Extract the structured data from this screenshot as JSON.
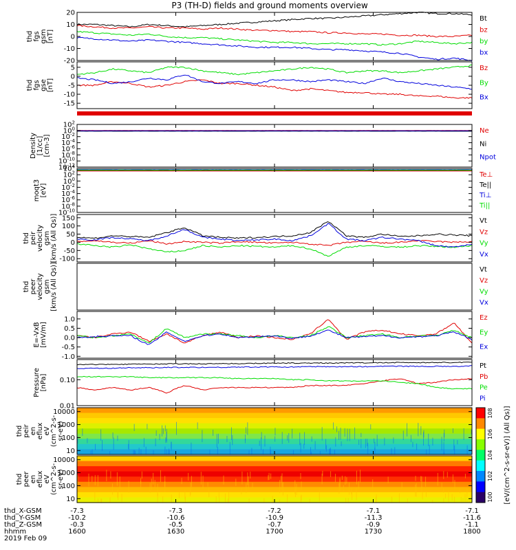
{
  "title": "P3 (TH-D) fields and ground moments overview",
  "colors": {
    "black": "#000000",
    "red": "#e00000",
    "green": "#00dd00",
    "blue": "#0000dd"
  },
  "colorbar": {
    "label": "[eV/(cm^2-s-sr-eV)] (All Qs)]",
    "ticks": [
      "10^0",
      "10^2",
      "10^4",
      "10^6",
      "10^8"
    ]
  },
  "chart_data": [
    {
      "type": "line",
      "id": "fgs_gsm",
      "ylabel": [
        "thd",
        "fgs",
        "gsm",
        "[nT]"
      ],
      "ylim": [
        -20,
        20
      ],
      "yticks": [
        "20",
        "10",
        "0",
        "-10",
        "-20"
      ],
      "series": [
        {
          "name": "Bt",
          "color": "black",
          "values": [
            10,
            10,
            9,
            8,
            10,
            9,
            8,
            9,
            10,
            11,
            12,
            13,
            14,
            15,
            15,
            16,
            17,
            18,
            19,
            20,
            19,
            19,
            18
          ]
        },
        {
          "name": "bz",
          "color": "red",
          "values": [
            9,
            8,
            7,
            7,
            8,
            7,
            7,
            6,
            7,
            6,
            5,
            5,
            4,
            4,
            3,
            3,
            2,
            2,
            1,
            1,
            0,
            0,
            1
          ]
        },
        {
          "name": "by",
          "color": "green",
          "values": [
            4,
            3,
            2,
            1,
            2,
            0,
            -1,
            -1,
            -2,
            -3,
            -4,
            -5,
            -5,
            -6,
            -6,
            -6,
            -6,
            -7,
            -6,
            -4,
            -5,
            -6,
            -5
          ]
        },
        {
          "name": "bx",
          "color": "blue",
          "values": [
            -1,
            -2,
            -3,
            -4,
            -3,
            -4,
            -5,
            -6,
            -7,
            -8,
            -9,
            -9,
            -9,
            -10,
            -11,
            -11,
            -12,
            -13,
            -14,
            -17,
            -19,
            -18,
            -20
          ]
        }
      ]
    },
    {
      "type": "line",
      "id": "fgs_gse",
      "ylabel": [
        "thd",
        "fgs",
        "gse",
        "[nT]"
      ],
      "ylim": [
        -18,
        8
      ],
      "yticks": [
        "5",
        "0",
        "-5",
        "-10",
        "-15"
      ],
      "series": [
        {
          "name": "Bz",
          "color": "red",
          "values": [
            -5,
            -5,
            -3,
            -4,
            -6,
            -5,
            -3,
            -2,
            -4,
            -4,
            -5,
            -6,
            -8,
            -7,
            -8,
            -9,
            -9,
            -10,
            -10,
            -11,
            -11,
            -12,
            -12
          ]
        },
        {
          "name": "By",
          "color": "green",
          "values": [
            1,
            2,
            4,
            3,
            2,
            5,
            5,
            3,
            2,
            1,
            2,
            3,
            4,
            5,
            4,
            2,
            3,
            3,
            2,
            3,
            4,
            5,
            6
          ]
        },
        {
          "name": "Bx",
          "color": "blue",
          "values": [
            -1,
            -2,
            -4,
            -3,
            -1,
            -2,
            1,
            -3,
            -4,
            -3,
            -4,
            -2,
            -2,
            -3,
            -2,
            -3,
            -4,
            -1,
            -3,
            -4,
            -5,
            -6,
            -7
          ]
        }
      ]
    },
    {
      "type": "line",
      "id": "density",
      "ylabel": [
        "Density",
        "[1/cc]",
        "[cm-3]"
      ],
      "log": true,
      "ylim": [
        1e-12,
        100.0
      ],
      "yticks": [
        "10^2",
        "10^0",
        "10^-2",
        "10^-4",
        "10^-6",
        "10^-8",
        "10^-10",
        "10^-12"
      ],
      "series": [
        {
          "name": "Ne",
          "color": "red",
          "values": [
            1,
            1,
            1,
            1,
            1,
            1,
            1,
            1,
            1,
            1,
            1,
            1,
            1,
            1,
            1,
            1,
            1,
            1,
            1,
            1,
            1,
            1,
            1
          ]
        },
        {
          "name": "Ni",
          "color": "black",
          "values": [
            0.6,
            0.6,
            0.6,
            0.6,
            0.6,
            0.6,
            0.6,
            0.6,
            0.6,
            0.6,
            0.6,
            0.6,
            0.6,
            0.6,
            0.6,
            0.6,
            0.6,
            0.6,
            0.6,
            0.6,
            0.6,
            0.6,
            0.6
          ]
        },
        {
          "name": "Npot",
          "color": "blue",
          "values": [
            0.8,
            0.8,
            0.8,
            0.8,
            0.8,
            0.8,
            0.8,
            0.8,
            0.8,
            0.8,
            0.8,
            0.8,
            0.8,
            0.8,
            0.8,
            0.8,
            0.8,
            0.8,
            0.8,
            0.8,
            0.8,
            0.8,
            0.8
          ]
        }
      ]
    },
    {
      "type": "line",
      "id": "temperature",
      "ylabel": [
        "moqt3",
        "[eV]"
      ],
      "log": true,
      "ylim": [
        1e-10,
        10000.0
      ],
      "yticks": [
        "10^4",
        "10^2",
        "10^0",
        "10^-2",
        "10^-4",
        "10^-6",
        "10^-8",
        "10^-10"
      ],
      "series": [
        {
          "name": "Te⊥",
          "color": "red",
          "values": [
            1500,
            1500,
            1500,
            1500,
            1500,
            1500,
            1500,
            1500,
            1500,
            1500,
            1500,
            1500,
            1500,
            1500,
            1500,
            1500,
            1500,
            1500,
            1500,
            1500,
            1500,
            1500,
            1500
          ]
        },
        {
          "name": "Te||",
          "color": "black",
          "values": [
            2500,
            2500,
            2500,
            2500,
            2500,
            2500,
            2500,
            2500,
            2500,
            2500,
            2500,
            2500,
            2500,
            2500,
            2500,
            2500,
            2500,
            2500,
            2500,
            2500,
            2500,
            2500,
            2500
          ]
        },
        {
          "name": "Ti⊥",
          "color": "blue",
          "values": [
            4000,
            4000,
            4000,
            4000,
            4000,
            4000,
            4000,
            4000,
            4000,
            4000,
            4000,
            4000,
            4000,
            4000,
            4000,
            4000,
            4000,
            4000,
            4000,
            4000,
            4000,
            4000,
            4000
          ]
        },
        {
          "name": "Ti||",
          "color": "green",
          "values": [
            3000,
            3000,
            3000,
            3000,
            3000,
            3000,
            3000,
            3000,
            3000,
            3000,
            3000,
            3000,
            3000,
            3000,
            3000,
            3000,
            3000,
            3000,
            3000,
            3000,
            3000,
            3000,
            3000
          ]
        }
      ]
    },
    {
      "type": "line",
      "id": "peir_velocity",
      "ylabel": [
        "thd",
        "peir",
        "velocity",
        "gsm",
        "[km/s (All Qs)]"
      ],
      "ylim": [
        -120,
        170
      ],
      "yticks": [
        "150",
        "100",
        "50",
        "0",
        "-50",
        "-100"
      ],
      "series": [
        {
          "name": "Vt",
          "color": "black",
          "values": [
            30,
            25,
            40,
            35,
            30,
            60,
            90,
            40,
            30,
            25,
            30,
            35,
            40,
            60,
            130,
            40,
            30,
            50,
            35,
            40,
            50,
            45,
            40
          ]
        },
        {
          "name": "Vz",
          "color": "red",
          "values": [
            5,
            10,
            0,
            -5,
            10,
            -10,
            5,
            0,
            -5,
            5,
            0,
            -5,
            0,
            -10,
            -20,
            0,
            5,
            -5,
            0,
            10,
            5,
            0,
            5
          ]
        },
        {
          "name": "Vy",
          "color": "green",
          "values": [
            -10,
            -20,
            -30,
            -15,
            -40,
            -60,
            -50,
            -20,
            -30,
            -20,
            -25,
            -30,
            -20,
            -40,
            -85,
            -30,
            -20,
            -25,
            -30,
            -20,
            -25,
            -30,
            -20
          ]
        },
        {
          "name": "Vx",
          "color": "blue",
          "values": [
            20,
            15,
            30,
            20,
            10,
            40,
            80,
            30,
            20,
            10,
            15,
            20,
            10,
            40,
            115,
            20,
            10,
            30,
            20,
            10,
            -20,
            -30,
            -10
          ]
        }
      ]
    },
    {
      "type": "line",
      "id": "peer_velocity",
      "ylabel": [
        "thd",
        "peer",
        "velocity",
        "gsm",
        "[km/s (All Qs)]"
      ],
      "ylim": [
        -100,
        100
      ],
      "yticks": [],
      "series": [
        {
          "name": "Vt",
          "color": "black",
          "values": []
        },
        {
          "name": "Vz",
          "color": "red",
          "values": []
        },
        {
          "name": "Vy",
          "color": "green",
          "values": []
        },
        {
          "name": "Vx",
          "color": "blue",
          "values": []
        }
      ]
    },
    {
      "type": "line",
      "id": "efield",
      "ylabel": [
        "E=-VxB",
        "[mV/m]"
      ],
      "ylim": [
        -1.1,
        1.4
      ],
      "yticks": [
        "1.0",
        "0.5",
        "0.0",
        "-0.5",
        "-1.0"
      ],
      "series": [
        {
          "name": "Ez",
          "color": "red",
          "values": [
            0.1,
            0.0,
            0.2,
            0.3,
            -0.2,
            0.2,
            -0.3,
            0.1,
            0.3,
            0.0,
            0.1,
            0.0,
            -0.1,
            0.2,
            1.0,
            -0.1,
            0.3,
            0.4,
            0.2,
            0.1,
            0.2,
            0.8,
            -0.3
          ]
        },
        {
          "name": "Ey",
          "color": "green",
          "values": [
            0.1,
            0.0,
            0.1,
            0.2,
            -0.3,
            0.5,
            0.0,
            0.2,
            0.2,
            0.1,
            0.0,
            0.1,
            0.0,
            0.1,
            0.6,
            0.0,
            0.1,
            0.2,
            0.0,
            0.1,
            0.1,
            0.4,
            0.0
          ]
        },
        {
          "name": "Ex",
          "color": "blue",
          "values": [
            0.0,
            0.05,
            0.1,
            0.1,
            -0.4,
            0.3,
            -0.2,
            0.1,
            0.2,
            0.0,
            0.05,
            0.1,
            -0.05,
            0.1,
            0.4,
            0.0,
            0.05,
            0.1,
            0.0,
            0.05,
            0.1,
            0.3,
            -0.1
          ]
        }
      ]
    },
    {
      "type": "line",
      "id": "pressure",
      "ylabel": [
        "Pressure",
        "[nPa]"
      ],
      "log": true,
      "ylim": [
        0.01,
        0.6
      ],
      "yticks": [
        "0.10",
        "0.01"
      ],
      "series": [
        {
          "name": "Pt",
          "color": "black",
          "values": [
            0.38,
            0.39,
            0.39,
            0.4,
            0.4,
            0.41,
            0.41,
            0.41,
            0.42,
            0.42,
            0.43,
            0.43,
            0.44,
            0.44,
            0.44,
            0.45,
            0.45,
            0.45,
            0.46,
            0.46,
            0.46,
            0.46,
            0.47
          ]
        },
        {
          "name": "Pb",
          "color": "red",
          "values": [
            0.05,
            0.04,
            0.05,
            0.04,
            0.05,
            0.03,
            0.06,
            0.04,
            0.05,
            0.05,
            0.05,
            0.05,
            0.05,
            0.06,
            0.06,
            0.06,
            0.07,
            0.09,
            0.11,
            0.07,
            0.08,
            0.1,
            0.11
          ]
        },
        {
          "name": "Pe",
          "color": "green",
          "values": [
            0.13,
            0.13,
            0.13,
            0.13,
            0.12,
            0.12,
            0.12,
            0.12,
            0.12,
            0.11,
            0.11,
            0.11,
            0.1,
            0.1,
            0.09,
            0.09,
            0.09,
            0.09,
            0.08,
            0.07,
            0.05,
            0.045,
            0.045
          ]
        },
        {
          "name": "Pi",
          "color": "blue",
          "values": [
            0.27,
            0.28,
            0.28,
            0.29,
            0.29,
            0.3,
            0.3,
            0.3,
            0.3,
            0.31,
            0.31,
            0.31,
            0.31,
            0.32,
            0.32,
            0.32,
            0.32,
            0.33,
            0.33,
            0.33,
            0.33,
            0.33,
            0.34
          ]
        }
      ]
    },
    {
      "type": "heatmap",
      "id": "peir_en_eflux",
      "ylabel": [
        "thd",
        "peir",
        "en",
        "eflux",
        "eV",
        "(cm^2-s-",
        "sr-eV)"
      ],
      "log": true,
      "ylim": [
        5,
        20000
      ],
      "yticks": [
        "10000",
        "1000",
        "100",
        "10"
      ],
      "rows_top_to_bottom": [
        "#ff9a00",
        "#ffc800",
        "#ffe000",
        "#ddf000",
        "#a6e800",
        "#7fe64a",
        "#33d89a",
        "#22c8cc",
        "#1aa6e0"
      ]
    },
    {
      "type": "heatmap",
      "id": "peer_en_eflux",
      "ylabel": [
        "thd",
        "peer",
        "en",
        "eflux",
        "eV",
        "(cm^2-s-",
        "sr-eV)"
      ],
      "log": true,
      "ylim": [
        5,
        20000
      ],
      "yticks": [
        "10000",
        "1000",
        "100",
        "10"
      ],
      "rows_top_to_bottom": [
        "#ffd000",
        "#ff7a00",
        "#ff2000",
        "#ee0000",
        "#ff3000",
        "#ff8a00",
        "#ffb800",
        "#ffe000",
        "#eaf000"
      ]
    }
  ],
  "xaxis": {
    "labels": [
      "thd_X-GSM",
      "thd_Y-GSM",
      "thd_Z-GSM",
      "hhmm",
      "2019 Feb 09"
    ],
    "ticks": [
      {
        "x": "-7.3",
        "y": "-10.2",
        "z": "-0.3",
        "t": "1600"
      },
      {
        "x": "-7.3",
        "y": "-10.6",
        "z": "-0.5",
        "t": "1630"
      },
      {
        "x": "-7.2",
        "y": "-10.9",
        "z": "-0.7",
        "t": "1700"
      },
      {
        "x": "-7.1",
        "y": "-11.3",
        "z": "-0.9",
        "t": "1730"
      },
      {
        "x": "-7.1",
        "y": "-11.6",
        "z": "-1.1",
        "t": "1800"
      }
    ]
  }
}
